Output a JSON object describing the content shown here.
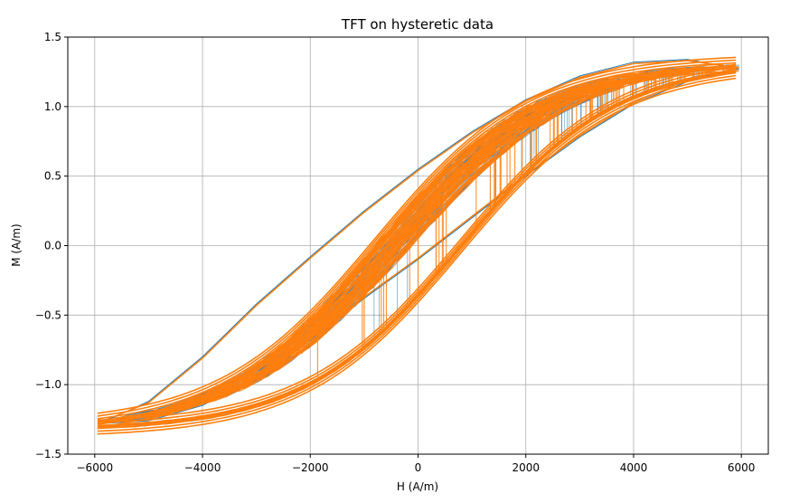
{
  "chart_data": {
    "type": "line",
    "title": "TFT on hysteretic data",
    "xlabel": "H (A/m)",
    "ylabel": "M (A/m)",
    "xlim": [
      -6500,
      6500
    ],
    "ylim": [
      -1.5,
      1.5
    ],
    "xticks": [
      -6000,
      -4000,
      -2000,
      0,
      2000,
      4000,
      6000
    ],
    "xtick_labels": [
      "−6000",
      "−4000",
      "−2000",
      "0",
      "2000",
      "4000",
      "6000"
    ],
    "yticks": [
      -1.5,
      -1.0,
      -0.5,
      0.0,
      0.5,
      1.0,
      1.5
    ],
    "ytick_labels": [
      "−1.5",
      "−1.0",
      "−0.5",
      "0.0",
      "0.5",
      "1.0",
      "1.5"
    ],
    "grid": true,
    "series": [
      {
        "color": "#1f77b4",
        "x": [
          -5900,
          -5000,
          -4000,
          -3000,
          -2000,
          -1000,
          0,
          1000,
          2000,
          3000,
          4000,
          5000,
          5950,
          5000,
          4000,
          3000,
          2000,
          1000,
          0,
          -1000,
          -2000,
          -3000,
          -4000,
          -5000,
          -5900
        ],
        "y": [
          -1.28,
          -1.26,
          -1.15,
          -0.95,
          -0.68,
          -0.38,
          -0.1,
          0.2,
          0.5,
          0.78,
          1.02,
          1.18,
          1.27,
          1.34,
          1.32,
          1.22,
          1.05,
          0.82,
          0.55,
          0.25,
          -0.08,
          -0.42,
          -0.8,
          -1.12,
          -1.28
        ]
      },
      {
        "color": "#ff7f0e",
        "x": [
          -5900,
          -5000,
          -4000,
          -3000,
          -2000,
          -1000,
          0,
          1000,
          2000,
          3000,
          4000,
          5000,
          5950,
          5000,
          4000,
          3000,
          2000,
          1000,
          0,
          -1000,
          -2000,
          -3000,
          -4000,
          -5000,
          -5900
        ],
        "y": [
          -1.27,
          -1.25,
          -1.14,
          -0.94,
          -0.67,
          -0.37,
          -0.09,
          0.21,
          0.51,
          0.79,
          1.03,
          1.19,
          1.28,
          1.33,
          1.31,
          1.21,
          1.04,
          0.81,
          0.54,
          0.24,
          -0.09,
          -0.43,
          -0.81,
          -1.13,
          -1.27
        ]
      }
    ]
  }
}
